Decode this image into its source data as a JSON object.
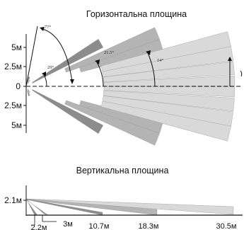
{
  "horizontal": {
    "title": "Горизонтальна площина",
    "y_labels": [
      "5м",
      "2.5м",
      "0",
      "2.5м",
      "5м"
    ],
    "angles": [
      "77°",
      "29°",
      "21.5°",
      "14°"
    ]
  },
  "vertical": {
    "title": "Вертикальна площина",
    "height_label": "2.1м",
    "distances": [
      "2.2м",
      "3м",
      "10.7м",
      "18.3м",
      "30.5м"
    ]
  },
  "colors": {
    "beam_dark": "#8c8c8c",
    "beam_mid": "#b4b4b4",
    "beam_light": "#d9d9d9",
    "line": "#111111"
  }
}
